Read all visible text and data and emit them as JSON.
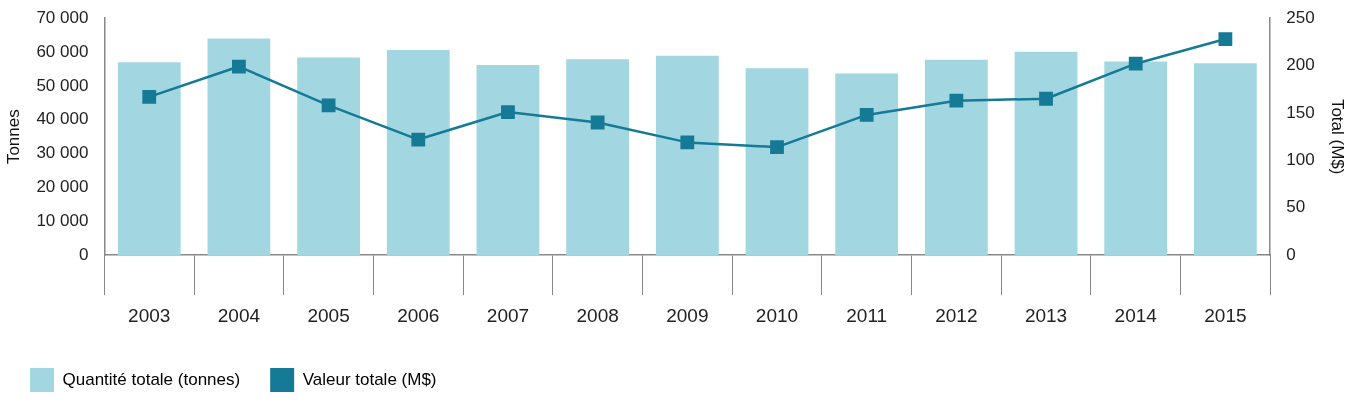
{
  "chart_data": {
    "type": "bar",
    "categories": [
      "2003",
      "2004",
      "2005",
      "2006",
      "2007",
      "2008",
      "2009",
      "2010",
      "2011",
      "2012",
      "2013",
      "2014",
      "2015"
    ],
    "series": [
      {
        "name": "Quantité totale (tonnes)",
        "color": "#a2d6e0",
        "values": [
          57000,
          64000,
          58400,
          60600,
          56200,
          57900,
          58900,
          55200,
          53700,
          57700,
          60100,
          57200,
          56700
        ]
      },
      {
        "name": "Valeur totale (M$)",
        "type": "line",
        "axis": "y2",
        "color": "#157a96",
        "marker": "square",
        "values": [
          167,
          199,
          158,
          122,
          151,
          140,
          119,
          114,
          148,
          163,
          165,
          202,
          228
        ]
      }
    ],
    "ylabel": "Tonnes",
    "y2label": "Total (M$)",
    "ylim": [
      0,
      70000
    ],
    "yticks": [
      {
        "value": 0,
        "label": "0"
      },
      {
        "value": 10000,
        "label": "10 000"
      },
      {
        "value": 20000,
        "label": "20 000"
      },
      {
        "value": 30000,
        "label": "30 000"
      },
      {
        "value": 40000,
        "label": "40 000"
      },
      {
        "value": 50000,
        "label": "50 000"
      },
      {
        "value": 60000,
        "label": "60 000"
      },
      {
        "value": 70000,
        "label": "70 000"
      }
    ],
    "y2lim": [
      0,
      250
    ],
    "y2ticks": [
      0,
      50,
      100,
      150,
      200,
      250
    ],
    "legend": "bottom left"
  }
}
